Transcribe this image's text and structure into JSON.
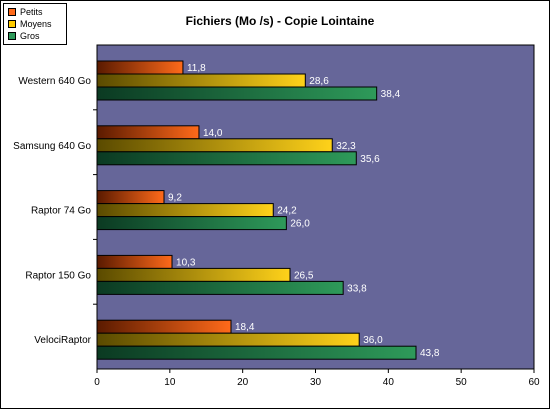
{
  "chart_data": {
    "type": "bar",
    "orientation": "horizontal",
    "title": "Fichiers (Mo /s) - Copie Lointaine",
    "categories": [
      "Western 640 Go",
      "Samsung 640 Go",
      "Raptor 74 Go",
      "Raptor 150 Go",
      "VelociRaptor"
    ],
    "series": [
      {
        "name": "Petits",
        "values": [
          11.8,
          14.0,
          9.2,
          10.3,
          18.4
        ],
        "labels": [
          "11,8",
          "14,0",
          "9,2",
          "10,3",
          "18,4"
        ],
        "color": "#ff6a1a"
      },
      {
        "name": "Moyens",
        "values": [
          28.6,
          32.3,
          24.2,
          26.5,
          36.0
        ],
        "labels": [
          "28,6",
          "32,3",
          "24,2",
          "26,5",
          "36,0"
        ],
        "color": "#ffcc00"
      },
      {
        "name": "Gros",
        "values": [
          38.4,
          35.6,
          26.0,
          33.8,
          43.8
        ],
        "labels": [
          "38,4",
          "35,6",
          "26,0",
          "33,8",
          "43,8"
        ],
        "color": "#2e9a5a"
      }
    ],
    "xlim": [
      0,
      60
    ],
    "xticks": [
      0,
      10,
      20,
      30,
      40,
      50,
      60
    ],
    "grid": false,
    "legend": "top-left",
    "plot_background": "#666699"
  }
}
